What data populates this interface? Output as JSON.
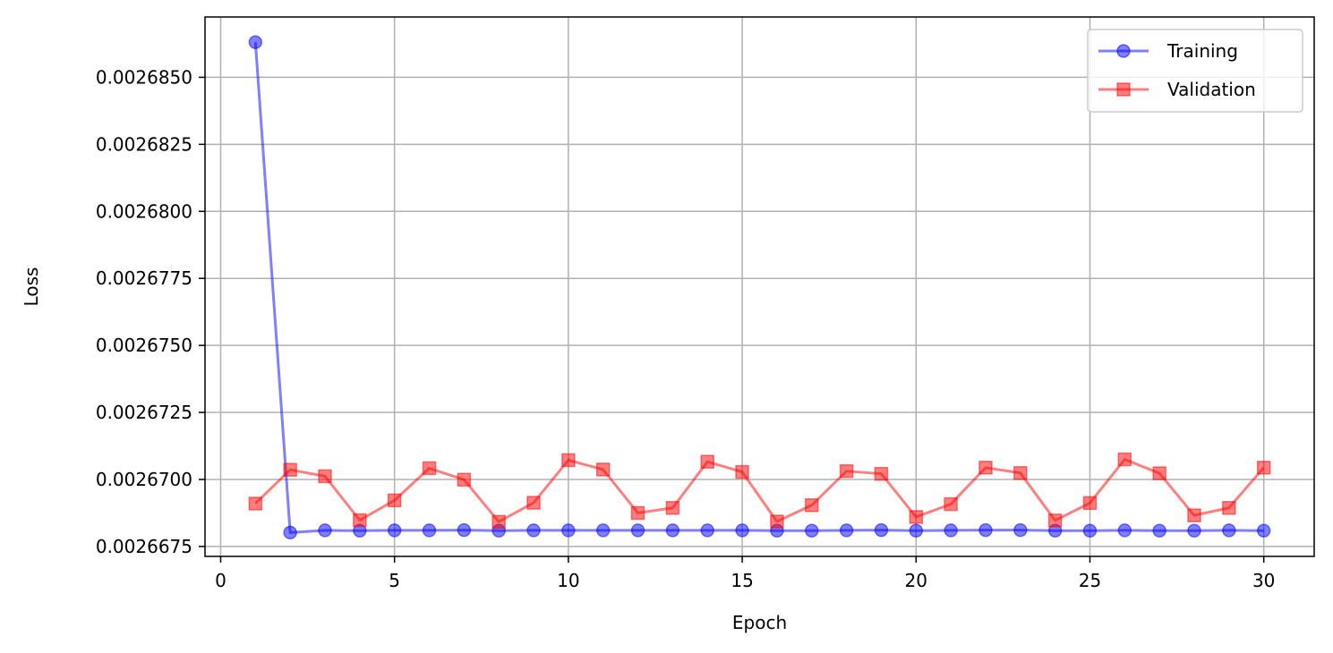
{
  "chart_data": {
    "type": "line",
    "title": "",
    "xlabel": "Epoch",
    "ylabel": "Loss",
    "xlim": [
      -0.45,
      31.45
    ],
    "ylim": [
      0.00266713,
      0.00268725
    ],
    "xticks": [
      0,
      5,
      10,
      15,
      20,
      25,
      30
    ],
    "xtick_labels": [
      "0",
      "5",
      "10",
      "15",
      "20",
      "25",
      "30"
    ],
    "yticks": [
      0.0026675,
      0.00267,
      0.0026725,
      0.002675,
      0.0026775,
      0.00268,
      0.0026825,
      0.002685
    ],
    "ytick_labels": [
      "0.0026675",
      "0.0026700",
      "0.0026725",
      "0.0026750",
      "0.0026775",
      "0.0026800",
      "0.0026825",
      "0.0026850"
    ],
    "grid": true,
    "legend_position": "top-right",
    "x": [
      1,
      2,
      3,
      4,
      5,
      6,
      7,
      8,
      9,
      10,
      11,
      12,
      13,
      14,
      15,
      16,
      17,
      18,
      19,
      20,
      21,
      22,
      23,
      24,
      25,
      26,
      27,
      28,
      29,
      30
    ],
    "series": [
      {
        "name": "Training",
        "color": "#0000ff",
        "marker": "circle",
        "values": [
          0.00268631,
          0.00266802,
          0.0026681,
          0.00266809,
          0.0026681,
          0.0026681,
          0.00266811,
          0.00266809,
          0.0026681,
          0.0026681,
          0.0026681,
          0.0026681,
          0.0026681,
          0.0026681,
          0.0026681,
          0.00266809,
          0.00266809,
          0.0026681,
          0.00266811,
          0.00266809,
          0.0026681,
          0.00266811,
          0.00266811,
          0.00266809,
          0.00266809,
          0.0026681,
          0.00266809,
          0.00266809,
          0.0026681,
          0.00266809
        ]
      },
      {
        "name": "Validation",
        "color": "#ff0000",
        "marker": "square",
        "values": [
          0.0026691,
          0.00267036,
          0.00267012,
          0.00266848,
          0.00266922,
          0.00267042,
          0.00266999,
          0.00266842,
          0.00266913,
          0.00267072,
          0.00267037,
          0.00266875,
          0.00266894,
          0.00267066,
          0.00267028,
          0.00266843,
          0.00266904,
          0.00267031,
          0.00267021,
          0.0026686,
          0.00266908,
          0.00267044,
          0.00267024,
          0.00266847,
          0.00266912,
          0.00267075,
          0.00267023,
          0.00266866,
          0.00266894,
          0.00267044
        ]
      }
    ]
  }
}
